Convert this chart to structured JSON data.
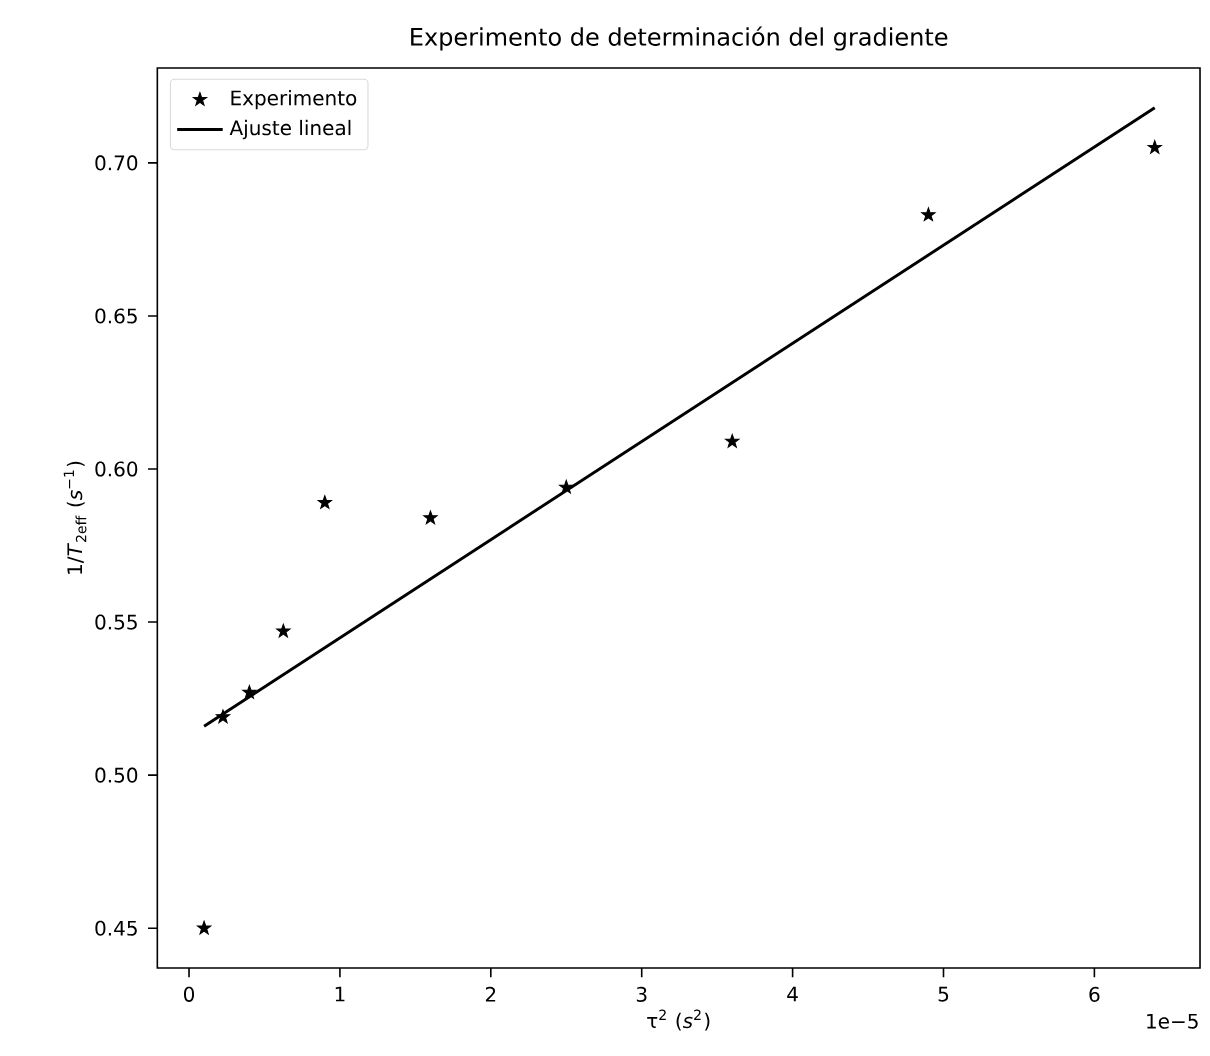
{
  "chart_data": {
    "type": "scatter",
    "title": "Experimento de determinación del gradiente",
    "xlabel": "τ$^{2}$ (*s*$^{2}$)",
    "ylabel": "1/*T*$_{2eff}$ (*s*$^{−1}$)",
    "series": [
      {
        "name": "Experimento",
        "color": "#000000",
        "marker": "star",
        "x": [
          0.1,
          0.225,
          0.4,
          0.625,
          0.9,
          1.6,
          2.5,
          3.6,
          4.9,
          6.4
        ],
        "values": [
          0.45,
          0.519,
          0.527,
          0.547,
          0.589,
          0.584,
          0.594,
          0.609,
          0.683,
          0.705
        ]
      },
      {
        "name": "Ajuste lineal",
        "type": "line",
        "color": "#000000",
        "line_style": "solid",
        "x": [
          0.1,
          6.4
        ],
        "values": [
          0.516,
          0.718
        ]
      }
    ],
    "xlim": [
      -0.21,
      6.7
    ],
    "ylim": [
      0.437,
      0.731
    ],
    "xticks": [
      0,
      1,
      2,
      3,
      4,
      5,
      6
    ],
    "yticks": [
      0.45,
      {
        "value": 0.5,
        "label": "0.50"
      },
      0.55,
      {
        "value": 0.6,
        "label": "0.60"
      },
      0.65,
      {
        "value": 0.7,
        "label": "0.70"
      }
    ],
    "annotations": [
      "1e−5"
    ],
    "grid": false,
    "legend": "top left"
  }
}
